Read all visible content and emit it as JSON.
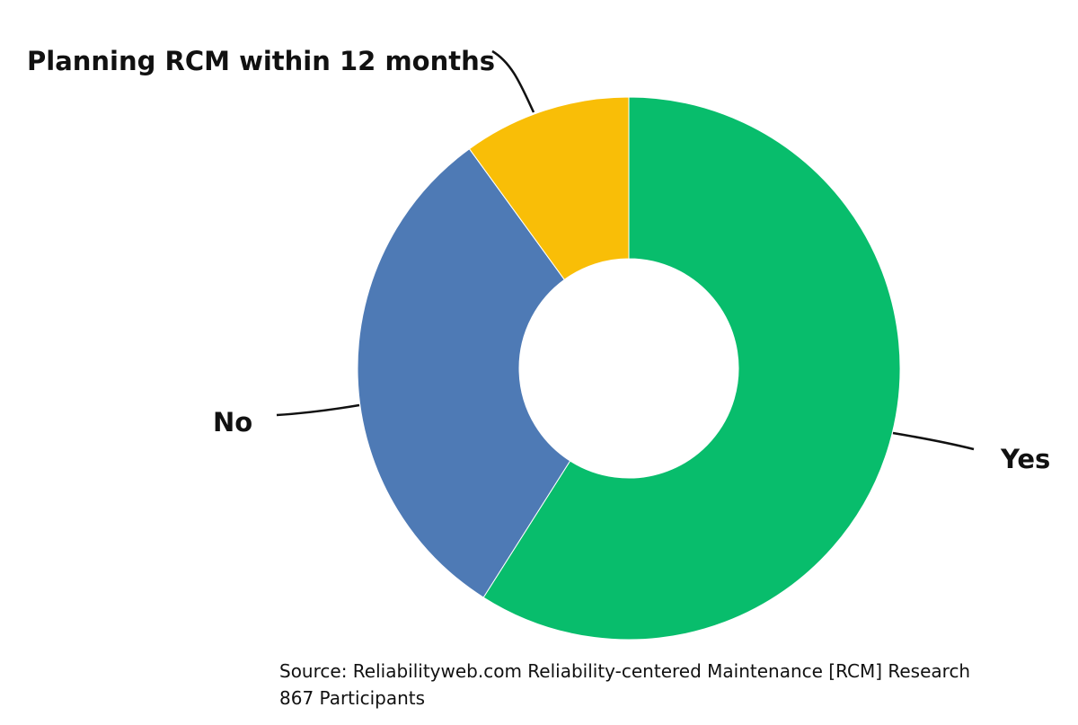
{
  "chart_data": {
    "type": "pie",
    "donut": true,
    "slices": [
      {
        "label": "Yes",
        "value": 59,
        "color": "#08BD6C"
      },
      {
        "label": "No",
        "value": 31,
        "color": "#4E7AB5"
      },
      {
        "label": "Planning RCM within 12 months",
        "value": 10,
        "color": "#F9BE07"
      }
    ]
  },
  "footer": {
    "source": "Source: Reliabilityweb.com Reliability-centered Maintenance [RCM] Research",
    "participants": "867 Participants"
  }
}
